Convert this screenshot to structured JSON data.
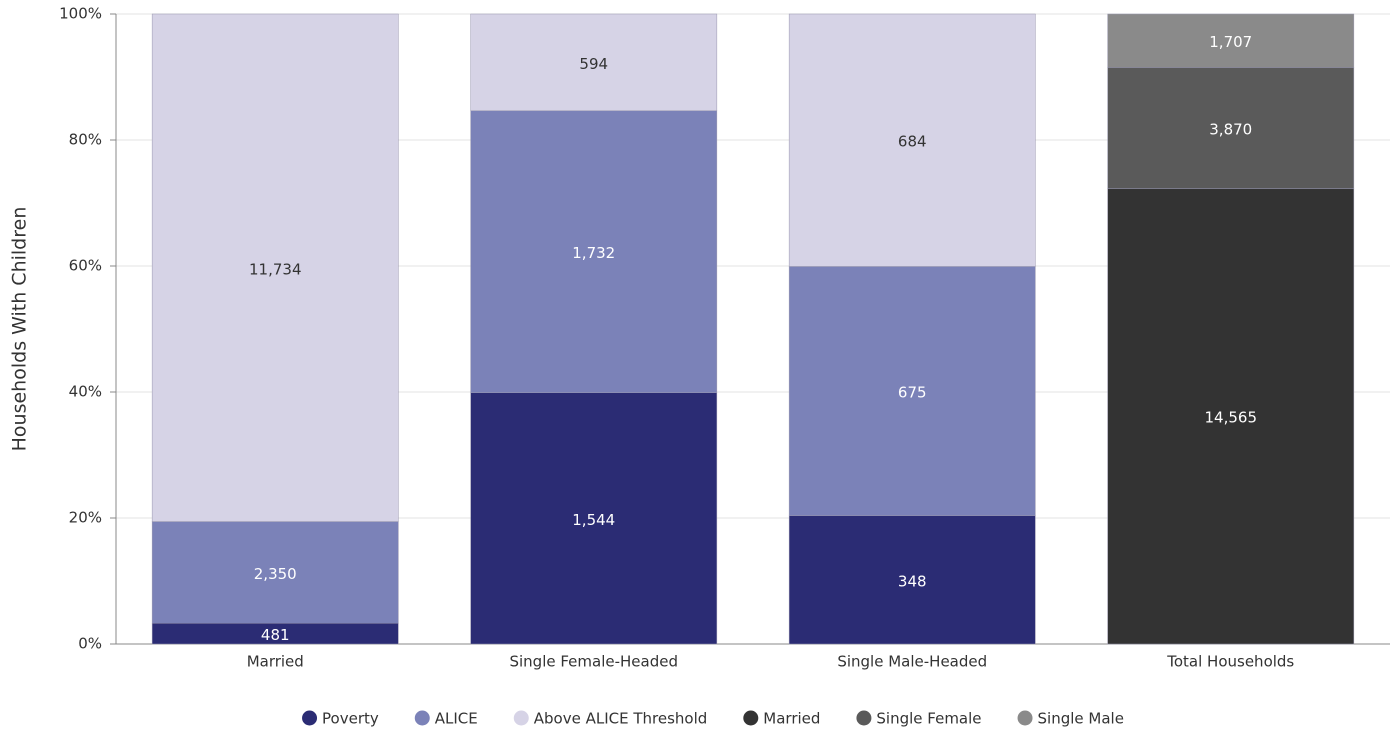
{
  "chart_data": {
    "type": "bar",
    "stack": "percent",
    "y_label": "Households With Children",
    "categories": [
      "Married",
      "Single Female-Headed",
      "Single Male-Headed",
      "Total Households"
    ],
    "series": [
      {
        "name": "Poverty",
        "color": "#2b2c74",
        "values": [
          481,
          1544,
          348,
          null
        ],
        "value_labels": [
          "481",
          "1,544",
          "348",
          null
        ]
      },
      {
        "name": "ALICE",
        "color": "#7b82b8",
        "values": [
          2350,
          1732,
          675,
          null
        ],
        "value_labels": [
          "2,350",
          "1,732",
          "675",
          null
        ]
      },
      {
        "name": "Above ALICE Threshold",
        "color": "#d6d3e6",
        "values": [
          11734,
          594,
          684,
          null
        ],
        "value_labels": [
          "11,734",
          "594",
          "684",
          null
        ]
      },
      {
        "name": "Married",
        "color": "#333333",
        "values": [
          null,
          null,
          null,
          14565
        ],
        "value_labels": [
          null,
          null,
          null,
          "14,565"
        ]
      },
      {
        "name": "Single Female",
        "color": "#5a5a5a",
        "values": [
          null,
          null,
          null,
          3870
        ],
        "value_labels": [
          null,
          null,
          null,
          "3,870"
        ]
      },
      {
        "name": "Single Male",
        "color": "#8a8a8a",
        "values": [
          null,
          null,
          null,
          1707
        ],
        "value_labels": [
          null,
          null,
          null,
          "1,707"
        ]
      }
    ],
    "ylim": [
      0,
      100
    ],
    "yticks": [
      {
        "value": 0,
        "label": "0%"
      },
      {
        "value": 20,
        "label": "20%"
      },
      {
        "value": 40,
        "label": "40%"
      },
      {
        "value": 60,
        "label": "60%"
      },
      {
        "value": 80,
        "label": "80%"
      },
      {
        "value": 100,
        "label": "100%"
      }
    ],
    "grid": true,
    "legend": "bottom"
  }
}
